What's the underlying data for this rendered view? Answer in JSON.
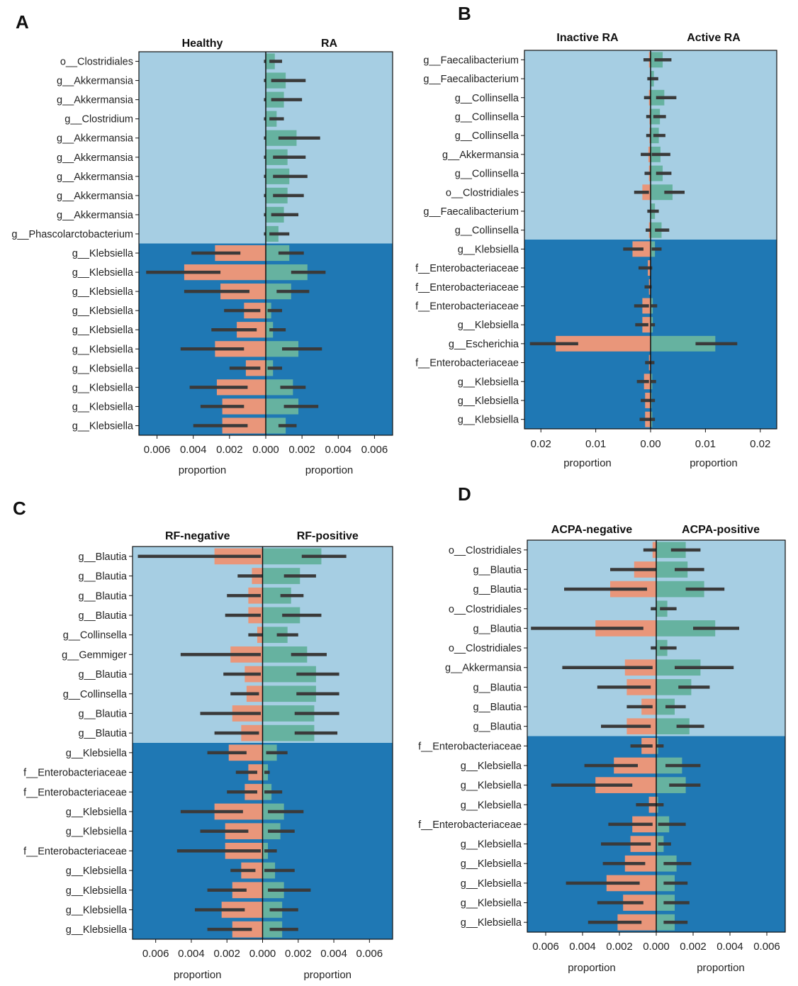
{
  "figure": {
    "colors": {
      "upper_band": "#a6cee3",
      "lower_band": "#1f78b4",
      "left_bar": "#e9967a",
      "right_bar": "#66b2a0",
      "error_bar": "#3a3a3a",
      "axis": "#111111"
    }
  },
  "chart_data": [
    {
      "id": "A",
      "type": "bar",
      "orientation": "horizontal",
      "panel_label": "A",
      "left_group": "Healthy",
      "right_group": "RA",
      "xlabel_left": "proportion",
      "xlabel_right": "proportion",
      "xlim": [
        -0.007,
        0.007
      ],
      "xticks": [
        -0.006,
        -0.004,
        -0.002,
        0,
        0.002,
        0.004,
        0.006
      ],
      "xtick_labels": [
        "0.006",
        "0.004",
        "0.002",
        "0.000",
        "0.002",
        "0.004",
        "0.006"
      ],
      "upper_count": 10,
      "categories": [
        "o__Clostridiales",
        "g__Akkermansia",
        "g__Akkermansia",
        "g__Clostridium",
        "g__Akkermansia",
        "g__Akkermansia",
        "g__Akkermansia",
        "g__Akkermansia",
        "g__Akkermansia",
        "g__Phascolarctobacterium",
        "g__Klebsiella",
        "g__Klebsiella",
        "g__Klebsiella",
        "g__Klebsiella",
        "g__Klebsiella",
        "g__Klebsiella",
        "g__Klebsiella",
        "g__Klebsiella",
        "g__Klebsiella",
        "g__Klebsiella"
      ],
      "left_values": [
        0,
        0,
        0,
        0,
        0,
        0,
        0,
        0,
        0,
        0,
        -0.0028,
        -0.0045,
        -0.0025,
        -0.0012,
        -0.0016,
        -0.0028,
        -0.0011,
        -0.0027,
        -0.0024,
        -0.0024
      ],
      "left_error_low": [
        -0.0001,
        -0.0001,
        -0.0001,
        -0.0001,
        -0.0001,
        -0.0001,
        -0.0001,
        -0.0001,
        -0.0001,
        -0.0001,
        -0.0041,
        -0.0066,
        -0.0045,
        -0.0023,
        -0.003,
        -0.0047,
        -0.002,
        -0.0042,
        -0.0036,
        -0.004
      ],
      "left_error_high": [
        0,
        0,
        0,
        0,
        0,
        0,
        0,
        0,
        0,
        0,
        -0.0014,
        -0.0025,
        -0.0009,
        -0.0003,
        -0.0005,
        -0.0012,
        -0.0003,
        -0.001,
        -0.0012,
        -0.001
      ],
      "right_values": [
        0.0005,
        0.0011,
        0.001,
        0.0006,
        0.0017,
        0.0012,
        0.0013,
        0.0012,
        0.001,
        0.0007,
        0.0013,
        0.0023,
        0.0014,
        0.0003,
        0.0004,
        0.0018,
        0.0004,
        0.0015,
        0.0018,
        0.0011
      ],
      "right_error_low": [
        0.0002,
        0.0003,
        0.0003,
        0.0002,
        0.0007,
        0.0004,
        0.0004,
        0.0004,
        0.0003,
        0.0002,
        0.0007,
        0.0014,
        0.0006,
        0.0001,
        0.0002,
        0.0009,
        0.0001,
        0.0008,
        0.001,
        0.0007
      ],
      "right_error_high": [
        0.0009,
        0.0022,
        0.002,
        0.001,
        0.003,
        0.0022,
        0.0023,
        0.0021,
        0.0018,
        0.0013,
        0.0021,
        0.0033,
        0.0024,
        0.0009,
        0.0011,
        0.0031,
        0.0009,
        0.0022,
        0.0029,
        0.0017
      ]
    },
    {
      "id": "B",
      "type": "bar",
      "orientation": "horizontal",
      "panel_label": "B",
      "left_group": "Inactive RA",
      "right_group": "Active RA",
      "xlabel_left": "proportion",
      "xlabel_right": "proportion",
      "xlim": [
        -0.023,
        0.023
      ],
      "xticks": [
        -0.02,
        -0.01,
        0,
        0.01,
        0.02
      ],
      "xtick_labels": [
        "0.02",
        "0.01",
        "0.00",
        "0.01",
        "0.02"
      ],
      "upper_count": 10,
      "categories": [
        "g__Faecalibacterium",
        "g__Faecalibacterium",
        "g__Collinsella",
        "g__Collinsella",
        "g__Collinsella",
        "g__Akkermansia",
        "g__Collinsella",
        "o__Clostridiales",
        "g__Faecalibacterium",
        "g__Collinsella",
        "g__Klebsiella",
        "f__Enterobacteriaceae",
        "f__Enterobacteriaceae",
        "f__Enterobacteriaceae",
        "g__Klebsiella",
        "g__Escherichia",
        "f__Enterobacteriaceae",
        "g__Klebsiella",
        "g__Klebsiella",
        "g__Klebsiella"
      ],
      "left_values": [
        -0.0003,
        0,
        -0.0003,
        -0.0002,
        -0.0002,
        -0.0004,
        -0.0003,
        -0.0015,
        0,
        -0.0003,
        -0.0033,
        -0.0005,
        -0.0003,
        -0.0015,
        -0.0015,
        -0.0173,
        -0.0003,
        -0.0012,
        -0.001,
        -0.001
      ],
      "left_error_low": [
        -0.0013,
        -0.0006,
        -0.0012,
        -0.0008,
        -0.0008,
        -0.0018,
        -0.0011,
        -0.003,
        -0.0006,
        -0.0009,
        -0.005,
        -0.0022,
        -0.0011,
        -0.003,
        -0.0028,
        -0.022,
        -0.001,
        -0.0025,
        -0.0018,
        -0.002
      ],
      "left_error_high": [
        0,
        0,
        0,
        0,
        0,
        0,
        0,
        -0.0003,
        0,
        0,
        -0.0013,
        0,
        0,
        -0.0003,
        -0.0004,
        -0.0132,
        0,
        -0.0003,
        0,
        0
      ],
      "right_values": [
        0.0022,
        0.0006,
        0.0025,
        0.0017,
        0.0015,
        0.0018,
        0.0022,
        0.004,
        0.0008,
        0.002,
        0.0008,
        0,
        0,
        0.0004,
        0.0004,
        0.0118,
        0,
        0.0003,
        0.0002,
        0.0003
      ],
      "right_error_low": [
        0.0007,
        0.0001,
        0.001,
        0.0005,
        0.0005,
        0.0002,
        0.001,
        0.0025,
        0.0001,
        0.0008,
        0.0002,
        0,
        0,
        0.0001,
        0.0001,
        0.0082,
        0,
        0.0001,
        0.0001,
        0.0001
      ],
      "right_error_high": [
        0.0038,
        0.0014,
        0.0047,
        0.0028,
        0.0027,
        0.0036,
        0.0038,
        0.0062,
        0.0015,
        0.0034,
        0.002,
        0.0003,
        0.0002,
        0.0012,
        0.0008,
        0.0158,
        0.0007,
        0.001,
        0.0008,
        0.0008
      ]
    },
    {
      "id": "C",
      "type": "bar",
      "orientation": "horizontal",
      "panel_label": "C",
      "left_group": "RF-negative",
      "right_group": "RF-positive",
      "xlabel_left": "proportion",
      "xlabel_right": "proportion",
      "xlim": [
        -0.0073,
        0.0073
      ],
      "xticks": [
        -0.006,
        -0.004,
        -0.002,
        0,
        0.002,
        0.004,
        0.006
      ],
      "xtick_labels": [
        "0.006",
        "0.004",
        "0.002",
        "0.000",
        "0.002",
        "0.004",
        "0.006"
      ],
      "upper_count": 10,
      "categories": [
        "g__Blautia",
        "g__Blautia",
        "g__Blautia",
        "g__Blautia",
        "g__Collinsella",
        "g__Gemmiger",
        "g__Blautia",
        "g__Collinsella",
        "g__Blautia",
        "g__Blautia",
        "g__Klebsiella",
        "f__Enterobacteriaceae",
        "f__Enterobacteriaceae",
        "g__Klebsiella",
        "g__Klebsiella",
        "f__Enterobacteriaceae",
        "g__Klebsiella",
        "g__Klebsiella",
        "g__Klebsiella",
        "g__Klebsiella"
      ],
      "left_values": [
        -0.0027,
        -0.0006,
        -0.0008,
        -0.0008,
        -0.0003,
        -0.0018,
        -0.001,
        -0.0009,
        -0.0017,
        -0.0012,
        -0.0019,
        -0.0008,
        -0.001,
        -0.0027,
        -0.0021,
        -0.0021,
        -0.0012,
        -0.0017,
        -0.0023,
        -0.0017
      ],
      "left_error_low": [
        -0.007,
        -0.0014,
        -0.002,
        -0.0021,
        -0.0008,
        -0.0046,
        -0.0022,
        -0.0018,
        -0.0035,
        -0.0027,
        -0.0031,
        -0.0015,
        -0.002,
        -0.0046,
        -0.0035,
        -0.0048,
        -0.0018,
        -0.0031,
        -0.0038,
        -0.0031
      ],
      "left_error_high": [
        -0.0001,
        0,
        -0.0001,
        -0.0001,
        0,
        -0.0001,
        -0.0001,
        -0.0002,
        -0.0001,
        -0.0002,
        -0.0009,
        -0.0003,
        -0.0003,
        -0.0011,
        -0.0008,
        -0.0001,
        -0.0004,
        -0.0009,
        -0.001,
        -0.0006
      ],
      "right_values": [
        0.0033,
        0.0021,
        0.0016,
        0.0021,
        0.0014,
        0.0025,
        0.003,
        0.003,
        0.0029,
        0.0029,
        0.0008,
        0.0003,
        0.0005,
        0.0012,
        0.001,
        0.0003,
        0.0007,
        0.0012,
        0.0011,
        0.0011
      ],
      "right_error_low": [
        0.0022,
        0.0012,
        0.001,
        0.0011,
        0.0008,
        0.0016,
        0.0019,
        0.0019,
        0.0018,
        0.0018,
        0.0002,
        0.0001,
        0.0001,
        0.0003,
        0.0003,
        0.0001,
        0.0001,
        0.0003,
        0.0004,
        0.0004
      ],
      "right_error_high": [
        0.0047,
        0.003,
        0.0023,
        0.0033,
        0.002,
        0.0036,
        0.0043,
        0.0043,
        0.0043,
        0.0042,
        0.0014,
        0.0004,
        0.0011,
        0.0023,
        0.0018,
        0.0008,
        0.0018,
        0.0027,
        0.002,
        0.002
      ]
    },
    {
      "id": "D",
      "type": "bar",
      "orientation": "horizontal",
      "panel_label": "D",
      "left_group": "ACPA-negative",
      "right_group": "ACPA-positive",
      "xlabel_left": "proportion",
      "xlabel_right": "proportion",
      "xlim": [
        -0.007,
        0.007
      ],
      "xticks": [
        -0.006,
        -0.004,
        -0.002,
        0,
        0.002,
        0.004,
        0.006
      ],
      "xtick_labels": [
        "0.006",
        "0.004",
        "0.002",
        "0.000",
        "0.002",
        "0.004",
        "0.006"
      ],
      "upper_count": 10,
      "categories": [
        "o__Clostridiales",
        "g__Blautia",
        "g__Blautia",
        "o__Clostridiales",
        "g__Blautia",
        "o__Clostridiales",
        "g__Akkermansia",
        "g__Blautia",
        "g__Blautia",
        "g__Blautia",
        "f__Enterobacteriaceae",
        "g__Klebsiella",
        "g__Klebsiella",
        "g__Klebsiella",
        "f__Enterobacteriaceae",
        "g__Klebsiella",
        "g__Klebsiella",
        "g__Klebsiella",
        "g__Klebsiella",
        "g__Klebsiella"
      ],
      "left_values": [
        -0.0002,
        -0.0012,
        -0.0025,
        0,
        -0.0033,
        0,
        -0.0017,
        -0.0016,
        -0.0008,
        -0.0016,
        -0.0008,
        -0.0023,
        -0.0033,
        -0.0004,
        -0.0013,
        -0.0014,
        -0.0017,
        -0.0027,
        -0.0018,
        -0.0021
      ],
      "left_error_low": [
        -0.0007,
        -0.0025,
        -0.005,
        -0.0003,
        -0.0068,
        -0.0003,
        -0.0051,
        -0.0032,
        -0.0016,
        -0.003,
        -0.0014,
        -0.0039,
        -0.0057,
        -0.0011,
        -0.0026,
        -0.003,
        -0.0029,
        -0.0049,
        -0.0032,
        -0.0037
      ],
      "left_error_high": [
        0,
        0,
        -0.0005,
        0,
        -0.0007,
        0,
        -0.0002,
        -0.0003,
        -0.0002,
        -0.0003,
        -0.0002,
        -0.001,
        -0.0013,
        0,
        -0.0002,
        -0.0003,
        -0.0006,
        -0.0009,
        -0.0007,
        -0.0008
      ],
      "right_values": [
        0.0016,
        0.0017,
        0.0026,
        0.0006,
        0.0032,
        0.0006,
        0.0024,
        0.0019,
        0.001,
        0.0018,
        0.0001,
        0.0014,
        0.0016,
        0.0001,
        0.0007,
        0.0004,
        0.0011,
        0.001,
        0.001,
        0.001
      ],
      "right_error_low": [
        0.0008,
        0.001,
        0.0016,
        0.0002,
        0.002,
        0.0002,
        0.001,
        0.0012,
        0.0005,
        0.0011,
        0,
        0.0005,
        0.0007,
        0,
        0.0001,
        0.0001,
        0.0004,
        0.0004,
        0.0004,
        0.0004
      ],
      "right_error_high": [
        0.0024,
        0.0026,
        0.0037,
        0.0011,
        0.0045,
        0.0011,
        0.0042,
        0.0029,
        0.0016,
        0.0026,
        0.0004,
        0.0024,
        0.0024,
        0.0004,
        0.0016,
        0.0008,
        0.0019,
        0.0017,
        0.0018,
        0.0017
      ]
    }
  ]
}
